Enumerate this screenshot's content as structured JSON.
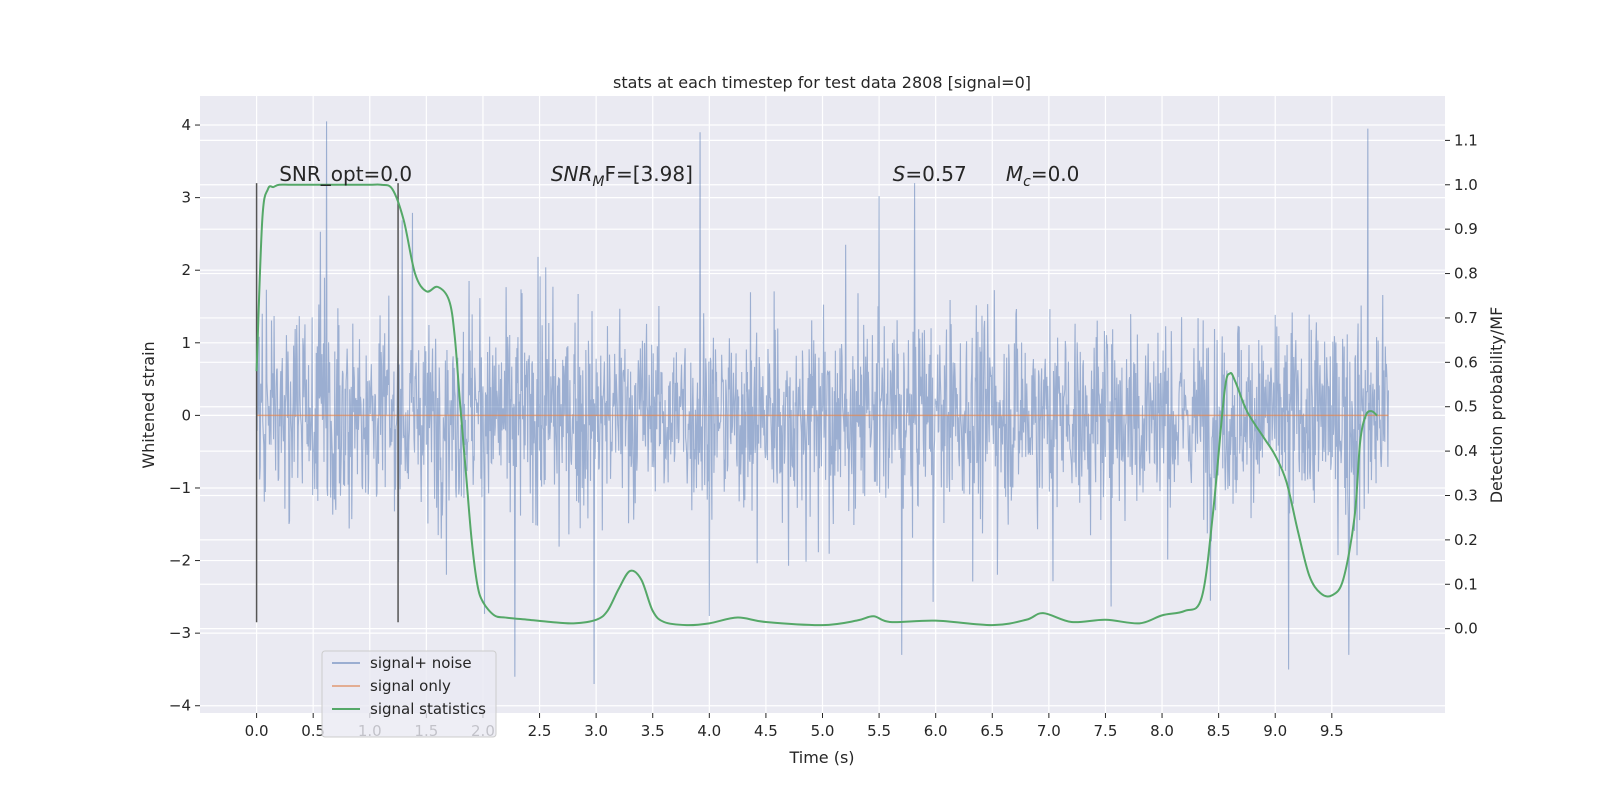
{
  "chart_data": {
    "type": "line",
    "title": "stats at each timestep for test data 2808 [signal=0]",
    "xlabel": "Time (s)",
    "ylabel": "Whitened strain",
    "ylabel_right": "Detection probability/MF",
    "xlim": [
      -0.5,
      10.5
    ],
    "ylim": [
      -4.1,
      4.4
    ],
    "ylim_right": [
      -0.19,
      1.2
    ],
    "x_ticks": [
      0.0,
      0.5,
      1.0,
      1.5,
      2.0,
      2.5,
      3.0,
      3.5,
      4.0,
      4.5,
      5.0,
      5.5,
      6.0,
      6.5,
      7.0,
      7.5,
      8.0,
      8.5,
      9.0,
      9.5
    ],
    "x_tick_labels": [
      "0.0",
      "0.5",
      "1.0",
      "1.5",
      "2.0",
      "2.5",
      "3.0",
      "3.5",
      "4.0",
      "4.5",
      "5.0",
      "5.5",
      "6.0",
      "6.5",
      "7.0",
      "7.5",
      "8.0",
      "8.5",
      "9.0",
      "9.5"
    ],
    "y_ticks": [
      -4,
      -3,
      -2,
      -1,
      0,
      1,
      2,
      3,
      4
    ],
    "y_tick_labels": [
      "−4",
      "−3",
      "−2",
      "−1",
      "0",
      "1",
      "2",
      "3",
      "4"
    ],
    "y_ticks_right": [
      0.0,
      0.1,
      0.2,
      0.3,
      0.4,
      0.5,
      0.6,
      0.7,
      0.8,
      0.9,
      1.0,
      1.1
    ],
    "y_tick_labels_right": [
      "0.0",
      "0.1",
      "0.2",
      "0.3",
      "0.4",
      "0.5",
      "0.6",
      "0.7",
      "0.8",
      "0.9",
      "1.0",
      "1.1"
    ],
    "grid": true,
    "legend_position": "lower-left",
    "noise": {
      "name": "signal+ noise",
      "x_range": [
        0.0,
        10.0
      ],
      "envelope_note": "dense noise trace, mostly within ±1.4 with spikes to about 4.0 and −3.7",
      "peaks": [
        {
          "x": 0.62,
          "y": 4.05
        },
        {
          "x": 3.92,
          "y": 3.9
        },
        {
          "x": 9.82,
          "y": 3.95
        },
        {
          "x": 2.98,
          "y": -3.7
        },
        {
          "x": 2.28,
          "y": -3.6
        },
        {
          "x": 9.12,
          "y": -3.5
        },
        {
          "x": 5.7,
          "y": -3.3
        },
        {
          "x": 9.65,
          "y": -3.3
        }
      ]
    },
    "series": [
      {
        "name": "signal only",
        "x": [
          0.0,
          10.0
        ],
        "y": [
          0.0,
          0.0
        ]
      },
      {
        "name": "signal statistics",
        "x": [
          0.0,
          0.05,
          0.1,
          0.15,
          0.2,
          0.3,
          0.5,
          0.8,
          1.0,
          1.1,
          1.2,
          1.3,
          1.4,
          1.5,
          1.6,
          1.7,
          1.75,
          1.8,
          1.85,
          1.9,
          1.95,
          2.0,
          2.1,
          2.2,
          2.4,
          2.6,
          2.8,
          3.0,
          3.1,
          3.2,
          3.3,
          3.4,
          3.5,
          3.6,
          3.8,
          4.0,
          4.25,
          4.5,
          5.0,
          5.3,
          5.45,
          5.6,
          6.0,
          6.5,
          6.8,
          6.95,
          7.2,
          7.5,
          7.8,
          8.0,
          8.2,
          8.35,
          8.45,
          8.55,
          8.6,
          8.65,
          8.75,
          8.9,
          9.0,
          9.1,
          9.2,
          9.3,
          9.4,
          9.5,
          9.6,
          9.7,
          9.75,
          9.8,
          9.85,
          9.9
        ],
        "y": [
          0.58,
          0.92,
          0.99,
          0.995,
          1.0,
          1.0,
          1.0,
          1.0,
          1.0,
          1.0,
          0.99,
          0.92,
          0.8,
          0.76,
          0.77,
          0.74,
          0.66,
          0.5,
          0.35,
          0.2,
          0.1,
          0.06,
          0.03,
          0.025,
          0.02,
          0.015,
          0.012,
          0.02,
          0.04,
          0.09,
          0.13,
          0.11,
          0.04,
          0.015,
          0.008,
          0.012,
          0.025,
          0.015,
          0.008,
          0.018,
          0.028,
          0.015,
          0.018,
          0.008,
          0.02,
          0.035,
          0.015,
          0.02,
          0.012,
          0.03,
          0.04,
          0.07,
          0.26,
          0.53,
          0.575,
          0.555,
          0.49,
          0.43,
          0.39,
          0.33,
          0.22,
          0.12,
          0.08,
          0.075,
          0.11,
          0.25,
          0.42,
          0.48,
          0.49,
          0.48
        ]
      }
    ],
    "vlines": [
      {
        "x": 0.0,
        "y_from": -2.85,
        "y_to": 3.2
      },
      {
        "x": 1.25,
        "y_from": -2.85,
        "y_to": 3.2
      }
    ],
    "annotations": [
      {
        "id": "snr-opt",
        "text": "SNR_opt=0.0",
        "x": 0.2,
        "y": 3.2
      },
      {
        "id": "snr-mf",
        "base": "SNR",
        "sub": "M",
        "tail": "F=[3.98]",
        "x": 2.6,
        "y": 3.2
      },
      {
        "id": "s-stat",
        "base": "S",
        "tail": "=0.57",
        "x": 5.62,
        "y": 3.2
      },
      {
        "id": "mc",
        "base": "M",
        "sub": "c",
        "tail": "=0.0",
        "x": 6.62,
        "y": 3.2
      }
    ],
    "colors": {
      "background": "#eaeaf2",
      "grid": "#ffffff",
      "noise": "#4c72b0",
      "signal_only": "#dd8452",
      "statistics": "#55a868",
      "vline": "#555555",
      "text": "#262626"
    }
  }
}
